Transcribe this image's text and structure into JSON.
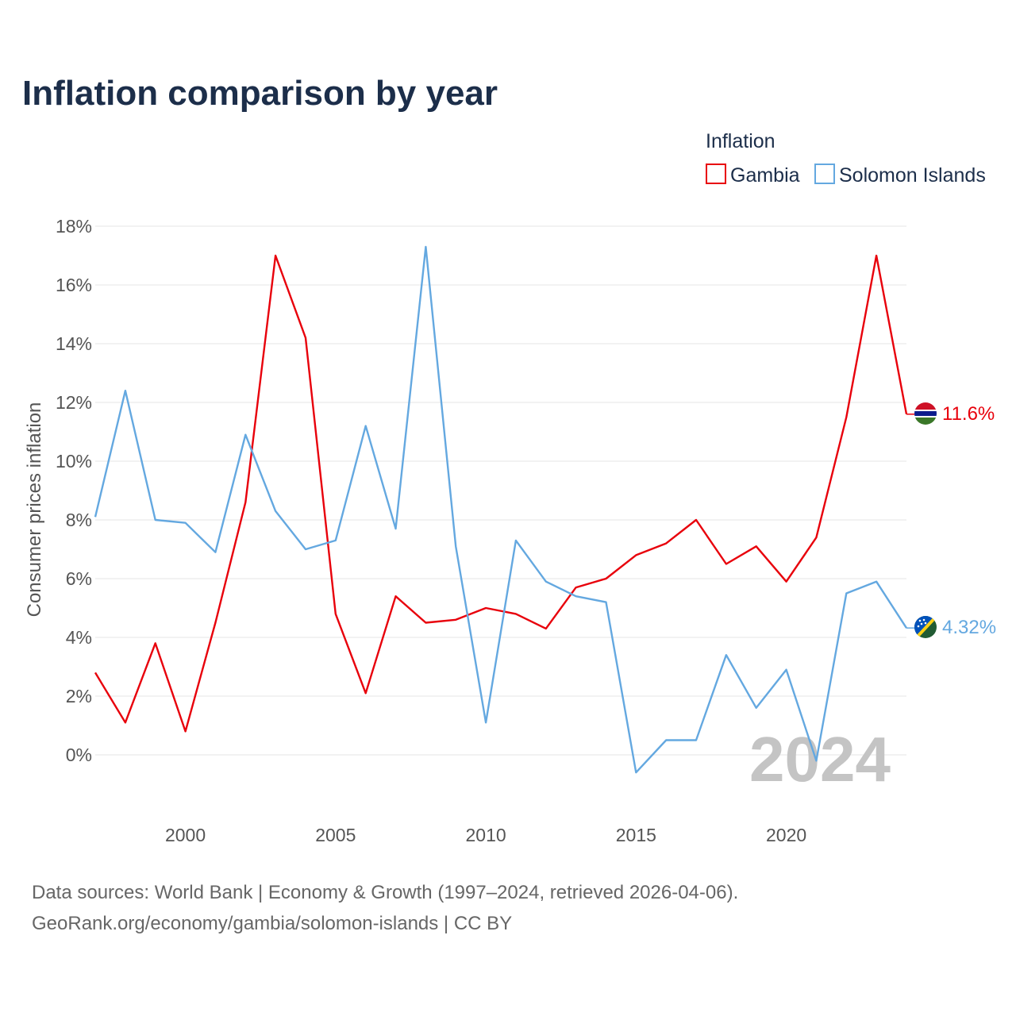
{
  "chart_data": {
    "type": "line",
    "title": "Inflation comparison by year",
    "legend_title": "Inflation",
    "legend_position": "top-right",
    "ylabel": "Consumer prices inflation",
    "xlabel": "",
    "xlim": [
      1997,
      2024
    ],
    "ylim": [
      -2,
      18
    ],
    "y_ticks": [
      0,
      2,
      4,
      6,
      8,
      10,
      12,
      14,
      16,
      18
    ],
    "y_tick_labels": [
      "0%",
      "2%",
      "4%",
      "6%",
      "8%",
      "10%",
      "12%",
      "14%",
      "16%",
      "18%"
    ],
    "x_ticks": [
      2000,
      2005,
      2010,
      2015,
      2020
    ],
    "x_tick_labels": [
      "2000",
      "2005",
      "2010",
      "2015",
      "2020"
    ],
    "grid": true,
    "watermark": "2024",
    "x": [
      1997,
      1998,
      1999,
      2000,
      2001,
      2002,
      2003,
      2004,
      2005,
      2006,
      2007,
      2008,
      2009,
      2010,
      2011,
      2012,
      2013,
      2014,
      2015,
      2016,
      2017,
      2018,
      2019,
      2020,
      2021,
      2022,
      2023,
      2024
    ],
    "series": [
      {
        "name": "Gambia",
        "color": "#e8000b",
        "end_label": "11.6%",
        "flag": "gambia-flag",
        "values": [
          2.8,
          1.1,
          3.8,
          0.8,
          4.5,
          8.6,
          17.0,
          14.2,
          4.8,
          2.1,
          5.4,
          4.5,
          4.6,
          5.0,
          4.8,
          4.3,
          5.7,
          6.0,
          6.8,
          7.2,
          8.0,
          6.5,
          7.1,
          5.9,
          7.4,
          11.5,
          17.0,
          11.6
        ]
      },
      {
        "name": "Solomon Islands",
        "color": "#64a8e0",
        "end_label": "4.32%",
        "flag": "solomon-islands-flag",
        "values": [
          8.1,
          12.4,
          8.0,
          7.9,
          6.9,
          10.9,
          8.3,
          7.0,
          7.3,
          11.2,
          7.7,
          17.3,
          7.1,
          1.1,
          7.3,
          5.9,
          5.4,
          5.2,
          -0.6,
          0.5,
          0.5,
          3.4,
          1.6,
          2.9,
          -0.2,
          5.5,
          5.9,
          4.32
        ]
      }
    ]
  },
  "footer": {
    "source_line": "Data sources: World Bank | Economy & Growth (1997–2024, retrieved 2026-04-06).",
    "url_line": "GeoRank.org/economy/gambia/solomon-islands | CC BY"
  }
}
